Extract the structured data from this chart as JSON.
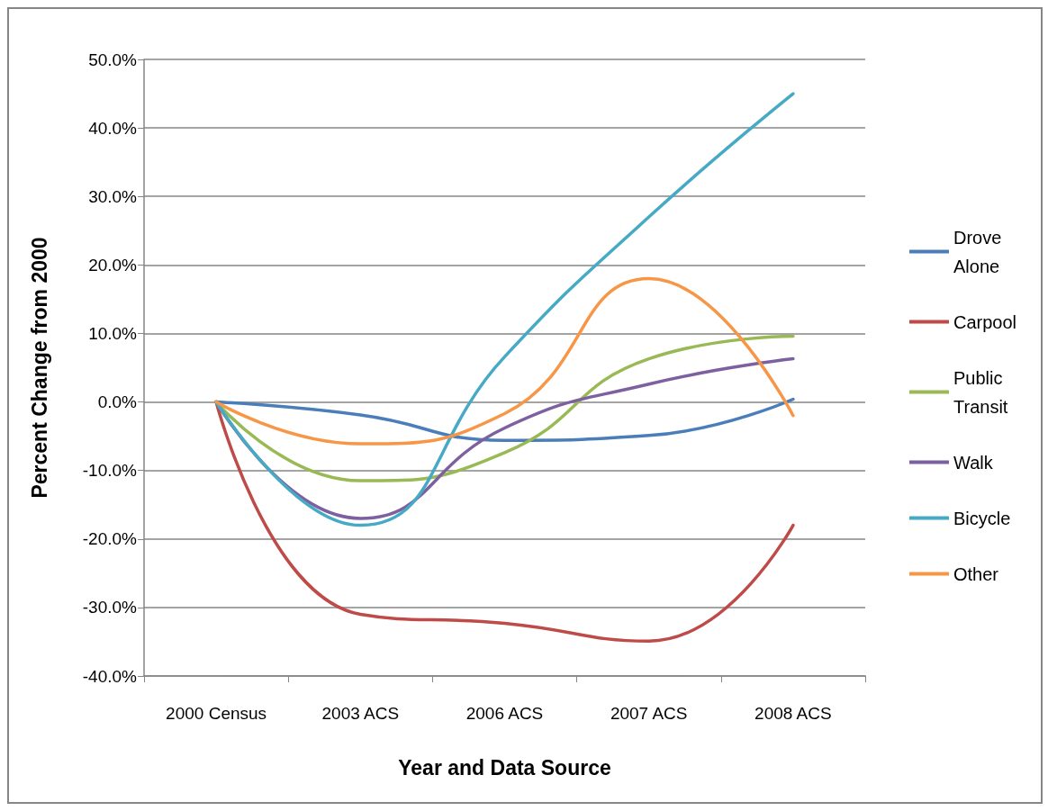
{
  "chart_data": {
    "type": "line",
    "xlabel": "Year and Data Source",
    "ylabel": "Percent Change from 2000",
    "categories": [
      "2000 Census",
      "2003 ACS",
      "2006 ACS",
      "2007 ACS",
      "2008 ACS"
    ],
    "series": [
      {
        "name": "Drove Alone",
        "color": "#4a7ebb",
        "values": [
          0,
          -1.9,
          -5.6,
          -4.9,
          0.4
        ]
      },
      {
        "name": "Carpool",
        "color": "#be4b48",
        "values": [
          0,
          -31,
          -32.3,
          -34.9,
          -18
        ]
      },
      {
        "name": "Public Transit",
        "color": "#98b954",
        "values": [
          0,
          -11.5,
          -7.4,
          6.3,
          9.6
        ]
      },
      {
        "name": "Walk",
        "color": "#7d60a0",
        "values": [
          0,
          -17,
          -3.8,
          2.6,
          6.3
        ]
      },
      {
        "name": "Bicycle",
        "color": "#46aac5",
        "values": [
          0,
          -18,
          6.6,
          27,
          45
        ]
      },
      {
        "name": "Other",
        "color": "#f79646",
        "values": [
          0,
          -6.1,
          -1.7,
          18,
          -2
        ]
      }
    ],
    "ylim": [
      -40,
      50
    ],
    "yticks": [
      {
        "value": -40,
        "label": "-40.0%"
      },
      {
        "value": -30,
        "label": "-30.0%"
      },
      {
        "value": -20,
        "label": "-20.0%"
      },
      {
        "value": -10,
        "label": "-10.0%"
      },
      {
        "value": 0,
        "label": "0.0%"
      },
      {
        "value": 10,
        "label": "10.0%"
      },
      {
        "value": 20,
        "label": "20.0%"
      },
      {
        "value": 30,
        "label": "30.0%"
      },
      {
        "value": 40,
        "label": "40.0%"
      },
      {
        "value": 50,
        "label": "50.0%"
      }
    ],
    "grid": "y",
    "legend": "right",
    "marker": "none",
    "line_style": "solid"
  }
}
